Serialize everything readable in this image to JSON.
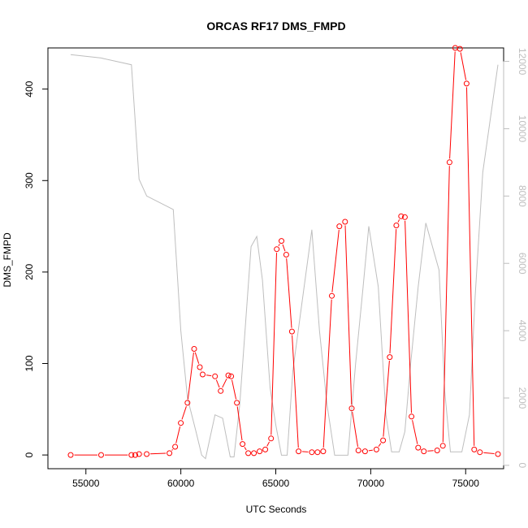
{
  "chart_data": {
    "type": "line",
    "title": "ORCAS RF17 DMS_FMPD",
    "xlabel": "UTC Seconds",
    "ylabel": "DMS_FMPD",
    "xlim": [
      53000,
      77000
    ],
    "ylim": [
      -15,
      445
    ],
    "y2lim": [
      -100,
      12400
    ],
    "x_ticks": [
      55000,
      60000,
      65000,
      70000,
      75000
    ],
    "y_ticks": [
      0,
      100,
      200,
      300,
      400
    ],
    "y2_ticks": [
      0,
      2000,
      4000,
      6000,
      8000,
      10000,
      12000
    ],
    "grid": false,
    "series": [
      {
        "color": "#ff0000",
        "style": "line-points",
        "x": [
          54200,
          55800,
          57400,
          57600,
          57800,
          58200,
          59400,
          59700,
          60000,
          60350,
          60700,
          61000,
          61150,
          61800,
          62100,
          62500,
          62650,
          62950,
          63250,
          63550,
          63850,
          64150,
          64450,
          64750,
          65050,
          65300,
          65550,
          65850,
          66200,
          66900,
          67200,
          67500,
          67950,
          68350,
          68650,
          69000,
          69350,
          69700,
          70300,
          70650,
          71000,
          71350,
          71600,
          71800,
          72150,
          72500,
          72800,
          73500,
          73800,
          74150,
          74450,
          74700,
          75050,
          75450,
          75750,
          76700
        ],
        "y": [
          0,
          0,
          0,
          0,
          1,
          1,
          2,
          9,
          35,
          57,
          116,
          96,
          88,
          86,
          70,
          87,
          86,
          57,
          12,
          2,
          2,
          4,
          6,
          18,
          225,
          234,
          219,
          135,
          4,
          3,
          3,
          4,
          174,
          250,
          255,
          51,
          5,
          4,
          6,
          16,
          107,
          251,
          261,
          260,
          42,
          8,
          4,
          5,
          10,
          320,
          445,
          444,
          406,
          6,
          3,
          1
        ]
      },
      {
        "color": "#bebebe",
        "style": "line",
        "axis": "right",
        "x": [
          54200,
          55800,
          57400,
          57800,
          58200,
          59600,
          60000,
          60350,
          60800,
          61100,
          61300,
          61800,
          62200,
          62600,
          62800,
          63100,
          63700,
          64000,
          64300,
          64700,
          65000,
          65300,
          65600,
          65900,
          66300,
          66900,
          67300,
          67700,
          68100,
          68500,
          68800,
          69200,
          69600,
          69900,
          70400,
          70800,
          71100,
          71500,
          71800,
          72100,
          72500,
          72900,
          73600,
          73900,
          74200,
          74500,
          74800,
          75200,
          75500,
          75900,
          76700
        ],
        "y": [
          12200,
          12100,
          11900,
          8500,
          8000,
          7600,
          4000,
          2000,
          1000,
          300,
          200,
          1500,
          1400,
          250,
          250,
          1800,
          6500,
          6800,
          5500,
          2300,
          1200,
          300,
          300,
          2800,
          4500,
          7000,
          4000,
          1800,
          300,
          300,
          300,
          3000,
          5300,
          7100,
          5300,
          1500,
          400,
          400,
          1000,
          3000,
          5300,
          7200,
          5800,
          2200,
          400,
          400,
          400,
          1500,
          5000,
          8700,
          11900
        ]
      }
    ]
  }
}
